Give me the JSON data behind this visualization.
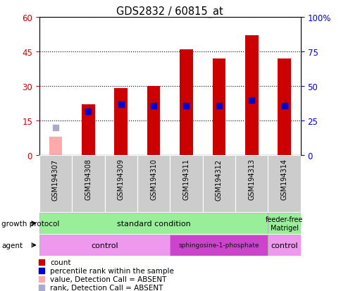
{
  "title": "GDS2832 / 60815_at",
  "samples": [
    "GSM194307",
    "GSM194308",
    "GSM194309",
    "GSM194310",
    "GSM194311",
    "GSM194312",
    "GSM194313",
    "GSM194314"
  ],
  "count_values": [
    null,
    22,
    29,
    30,
    46,
    42,
    52,
    42
  ],
  "count_absent": [
    8,
    null,
    null,
    null,
    null,
    null,
    null,
    null
  ],
  "percentile_values": [
    null,
    32,
    37,
    36,
    36,
    36,
    40,
    36
  ],
  "percentile_absent": [
    20,
    null,
    null,
    null,
    null,
    null,
    null,
    null
  ],
  "count_color": "#cc0000",
  "count_absent_color": "#ffaaaa",
  "percentile_color": "#0000cc",
  "percentile_absent_color": "#aaaacc",
  "ylim_left": [
    0,
    60
  ],
  "ylim_right": [
    0,
    100
  ],
  "yticks_left": [
    0,
    15,
    30,
    45,
    60
  ],
  "ytick_labels_left": [
    "0",
    "15",
    "30",
    "45",
    "60"
  ],
  "yticks_right": [
    0,
    25,
    50,
    75,
    100
  ],
  "ytick_labels_right": [
    "0",
    "25",
    "50",
    "75",
    "100%"
  ],
  "bar_width": 0.4,
  "marker_size": 6,
  "axis_color_left": "#cc0000",
  "axis_color_right": "#0000cc",
  "xticklabel_bg": "#cccccc",
  "growth_std_color": "#99ee99",
  "growth_ff_color": "#99ee99",
  "agent_ctrl_color": "#ee99ee",
  "agent_sph_color": "#cc44cc",
  "legend_items": [
    {
      "label": "count",
      "color": "#cc0000"
    },
    {
      "label": "percentile rank within the sample",
      "color": "#0000cc"
    },
    {
      "label": "value, Detection Call = ABSENT",
      "color": "#ffaaaa"
    },
    {
      "label": "rank, Detection Call = ABSENT",
      "color": "#aaaacc"
    }
  ]
}
